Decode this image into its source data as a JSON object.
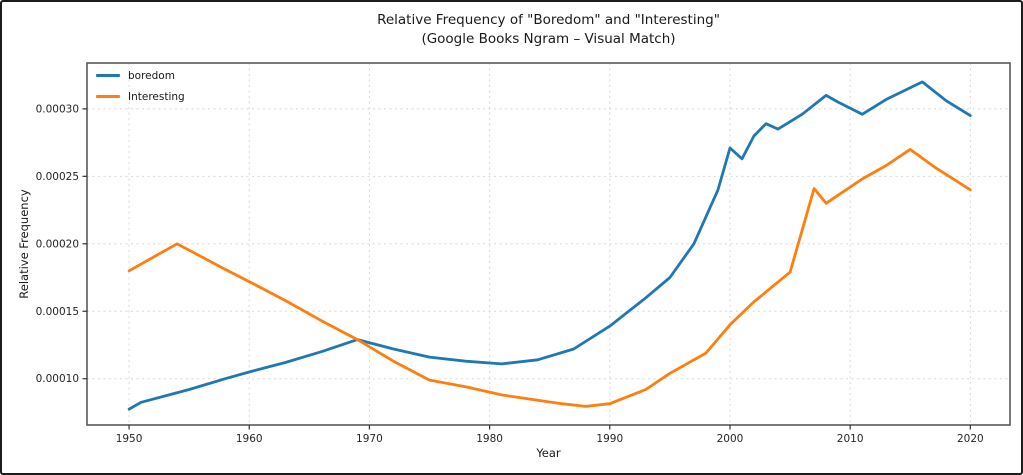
{
  "chart_data": {
    "type": "line",
    "title": "Relative Frequency of \"Boredom\" and \"Interesting\"",
    "subtitle": "(Google Books Ngram – Visual Match)",
    "xlabel": "Year",
    "ylabel": "Relative Frequency",
    "xlim": [
      1946.5,
      2023.3
    ],
    "ylim": [
      6.57e-05,
      0.000334
    ],
    "xticks": [
      1950,
      1960,
      1970,
      1980,
      1990,
      2000,
      2010,
      2020
    ],
    "yticks": [
      0.0001,
      0.00015,
      0.0002,
      0.00025,
      0.0003
    ],
    "ytick_labels": [
      "0.00010",
      "0.00015",
      "0.00020",
      "0.00025",
      "0.00030"
    ],
    "grid": true,
    "grid_color": "#d8d8d8",
    "spine_color": "#595959",
    "legend_position": "upper-left",
    "series": [
      {
        "name": "boredom",
        "color": "#1f77b4",
        "points": [
          [
            1950,
            7.75e-05
          ],
          [
            1951,
            8.25e-05
          ],
          [
            1955,
            9.2e-05
          ],
          [
            1958,
            0.0001
          ],
          [
            1960,
            0.000105
          ],
          [
            1963,
            0.000112
          ],
          [
            1966,
            0.00012
          ],
          [
            1969,
            0.000129
          ],
          [
            1972,
            0.000122
          ],
          [
            1975,
            0.000116
          ],
          [
            1978,
            0.000113
          ],
          [
            1981,
            0.000111
          ],
          [
            1984,
            0.000114
          ],
          [
            1987,
            0.000122
          ],
          [
            1990,
            0.000139
          ],
          [
            1993,
            0.00016
          ],
          [
            1995,
            0.000175
          ],
          [
            1997,
            0.0002
          ],
          [
            1999,
            0.00024
          ],
          [
            2000,
            0.000271
          ],
          [
            2001,
            0.000263
          ],
          [
            2002,
            0.00028
          ],
          [
            2003,
            0.000289
          ],
          [
            2004,
            0.000285
          ],
          [
            2006,
            0.000296
          ],
          [
            2008,
            0.00031
          ],
          [
            2009,
            0.000305
          ],
          [
            2011,
            0.000296
          ],
          [
            2013,
            0.000307
          ],
          [
            2016,
            0.00032
          ],
          [
            2018,
            0.000306
          ],
          [
            2020,
            0.000295
          ]
        ]
      },
      {
        "name": "Interesting",
        "color": "#ff7f0e",
        "points": [
          [
            1950,
            0.00018
          ],
          [
            1954,
            0.0002
          ],
          [
            1958,
            0.000181
          ],
          [
            1960,
            0.000172
          ],
          [
            1963,
            0.000158
          ],
          [
            1966,
            0.000143
          ],
          [
            1969,
            0.000129
          ],
          [
            1972,
            0.000113
          ],
          [
            1975,
            9.9e-05
          ],
          [
            1978,
            9.4e-05
          ],
          [
            1981,
            8.8e-05
          ],
          [
            1984,
            8.4e-05
          ],
          [
            1986,
            8.15e-05
          ],
          [
            1988,
            7.95e-05
          ],
          [
            1990,
            8.15e-05
          ],
          [
            1993,
            9.2e-05
          ],
          [
            1995,
            0.000104
          ],
          [
            1998,
            0.000119
          ],
          [
            2000,
            0.00014
          ],
          [
            2002,
            0.000157
          ],
          [
            2005,
            0.000179
          ],
          [
            2007,
            0.000241
          ],
          [
            2008,
            0.00023
          ],
          [
            2009,
            0.000236
          ],
          [
            2011,
            0.000248
          ],
          [
            2013,
            0.000258
          ],
          [
            2015,
            0.00027
          ],
          [
            2017,
            0.000257
          ],
          [
            2020,
            0.00024
          ]
        ]
      }
    ]
  }
}
